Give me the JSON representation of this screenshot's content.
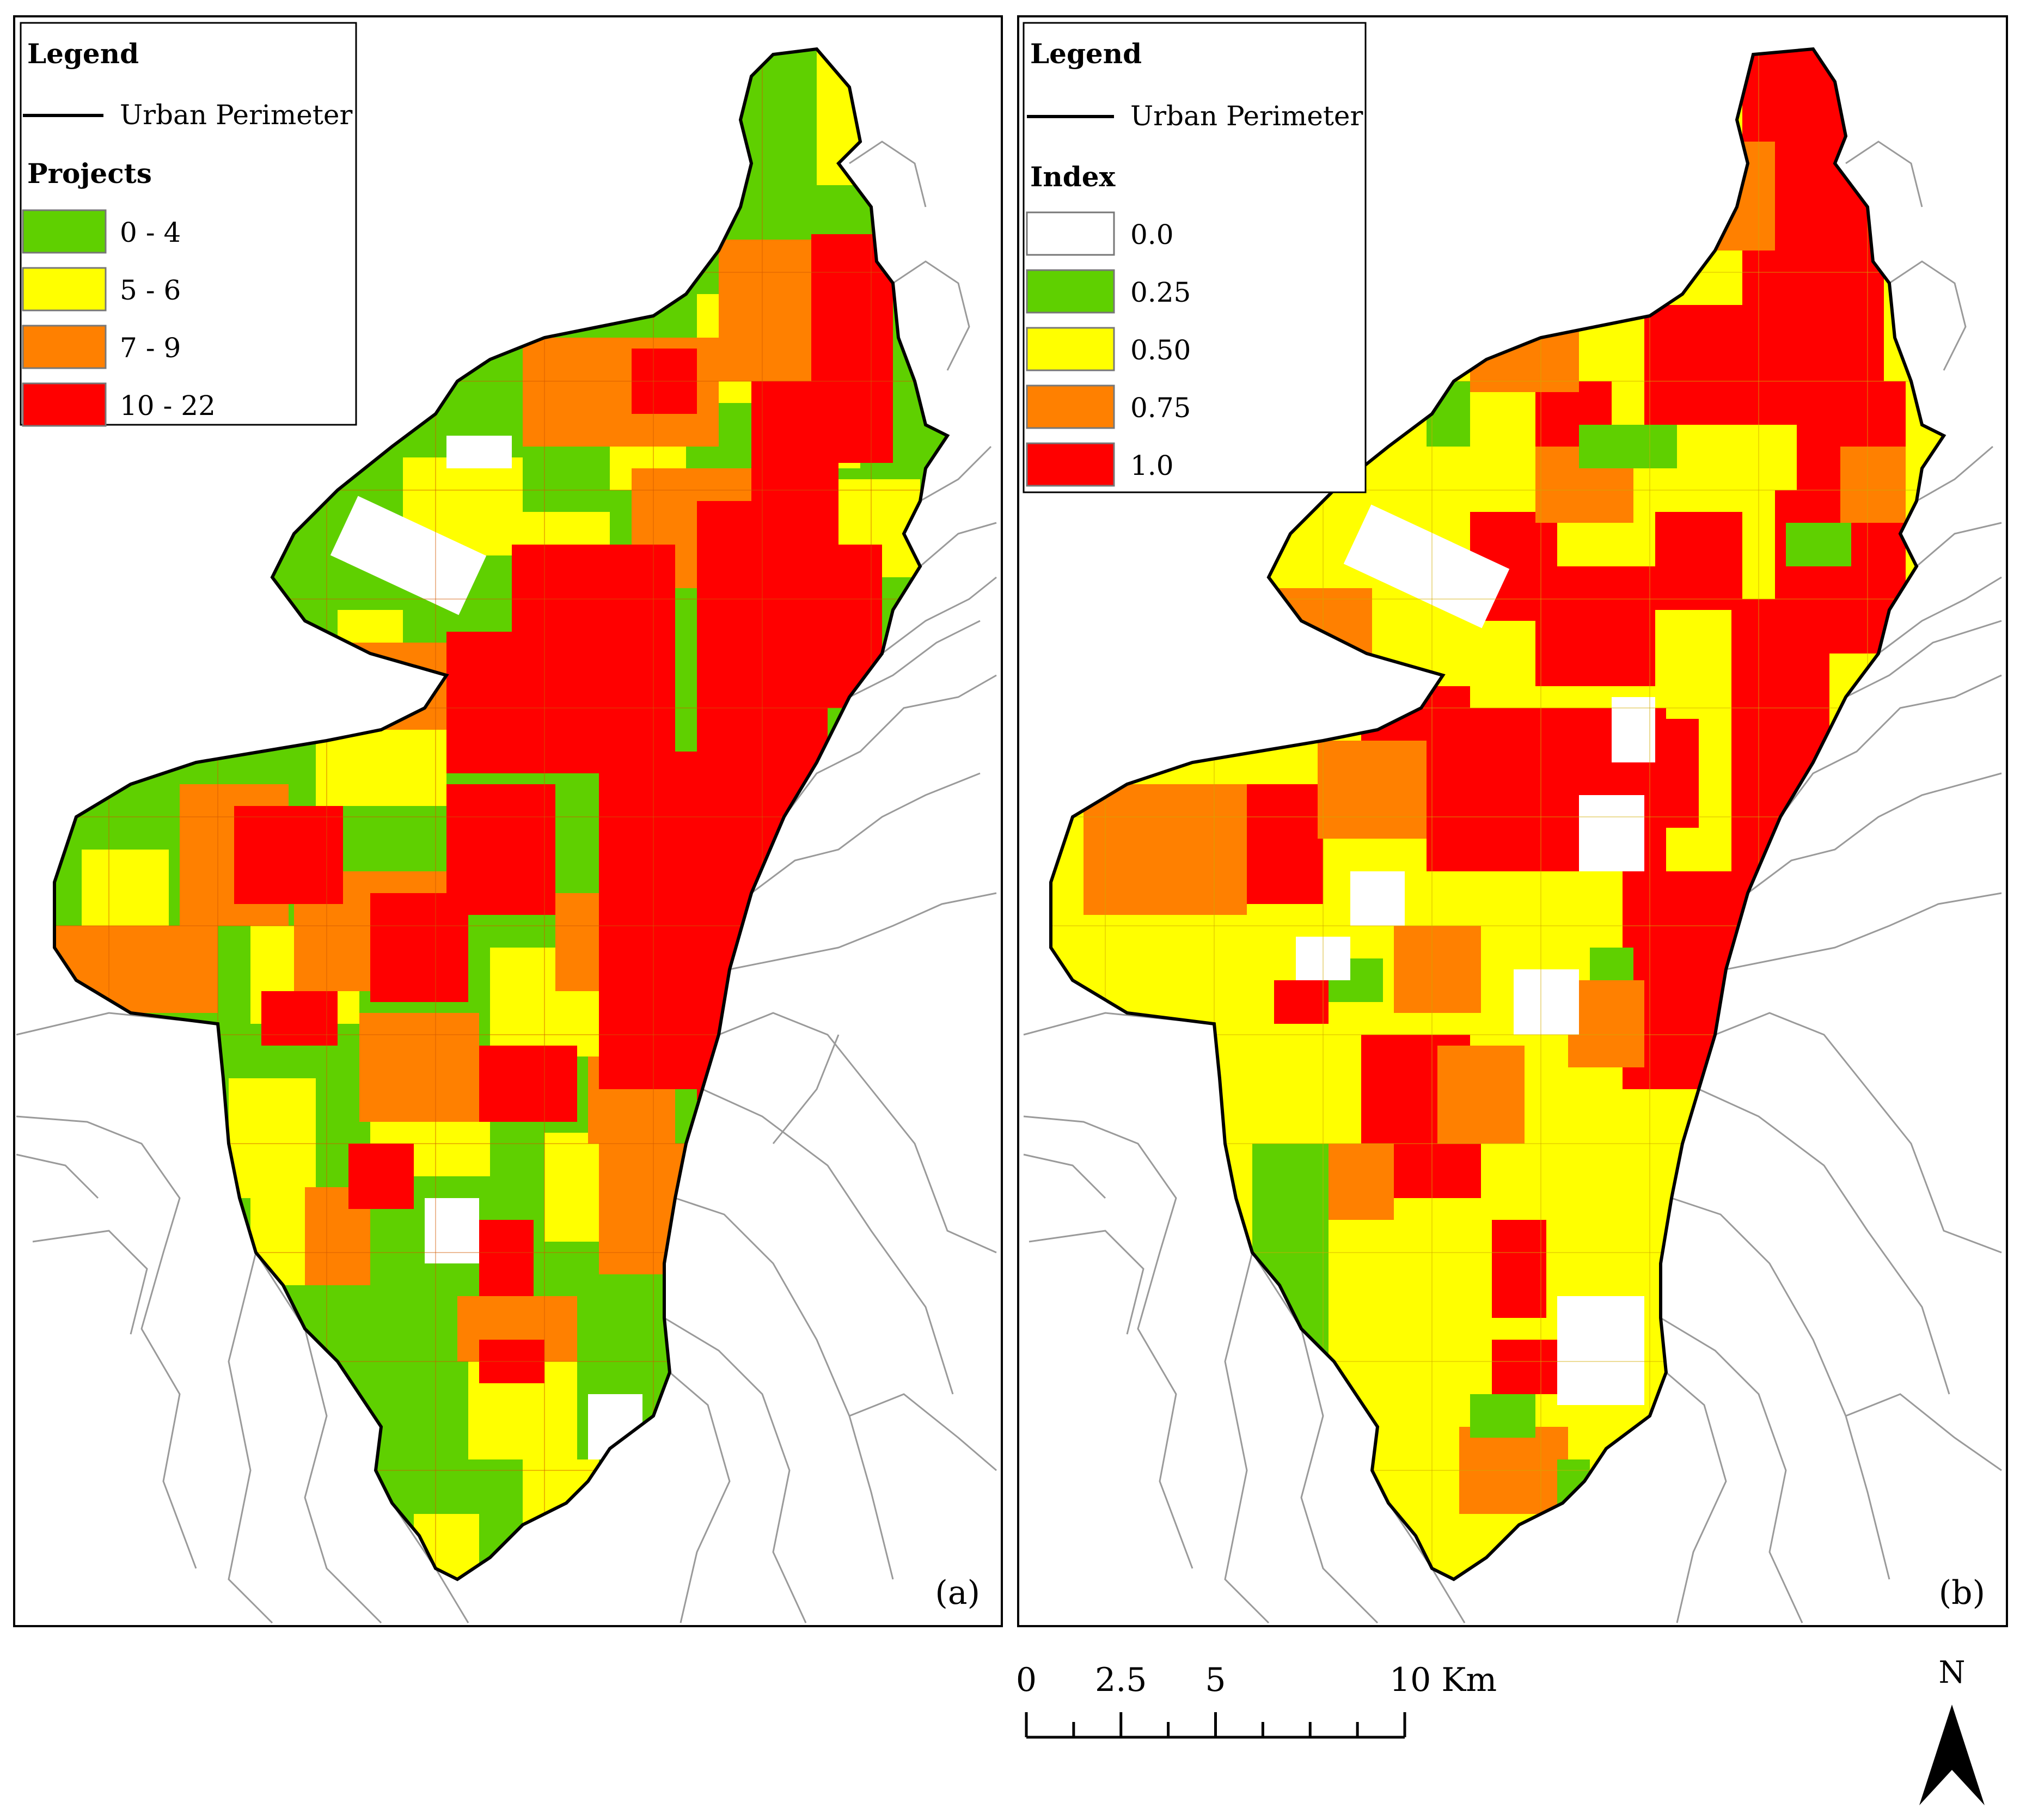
{
  "maps": [
    {
      "id": "a",
      "panel_label": "(a)",
      "legend": {
        "title": "Legend",
        "line_label": "Urban Perimeter",
        "class_title": "Projects",
        "classes": [
          {
            "label": "0 - 4",
            "color": "#5fd000"
          },
          {
            "label": "5 - 6",
            "color": "#ffff00"
          },
          {
            "label": "7 - 9",
            "color": "#ff8000"
          },
          {
            "label": "10 - 22",
            "color": "#ff0000"
          }
        ]
      }
    },
    {
      "id": "b",
      "panel_label": "(b)",
      "legend": {
        "title": "Legend",
        "line_label": "Urban Perimeter",
        "class_title": "Index",
        "classes": [
          {
            "label": "0.0",
            "color": "#ffffff"
          },
          {
            "label": "0.25",
            "color": "#5fd000"
          },
          {
            "label": "0.50",
            "color": "#ffff00"
          },
          {
            "label": "0.75",
            "color": "#ff8000"
          },
          {
            "label": "1.0",
            "color": "#ff0000"
          }
        ]
      }
    }
  ],
  "scale_bar": {
    "labels": [
      "0",
      "2.5",
      "5",
      "10 Km"
    ],
    "values": [
      0,
      2.5,
      5,
      10
    ]
  },
  "north_arrow": {
    "label": "N",
    "icon": "north-arrow-icon"
  }
}
